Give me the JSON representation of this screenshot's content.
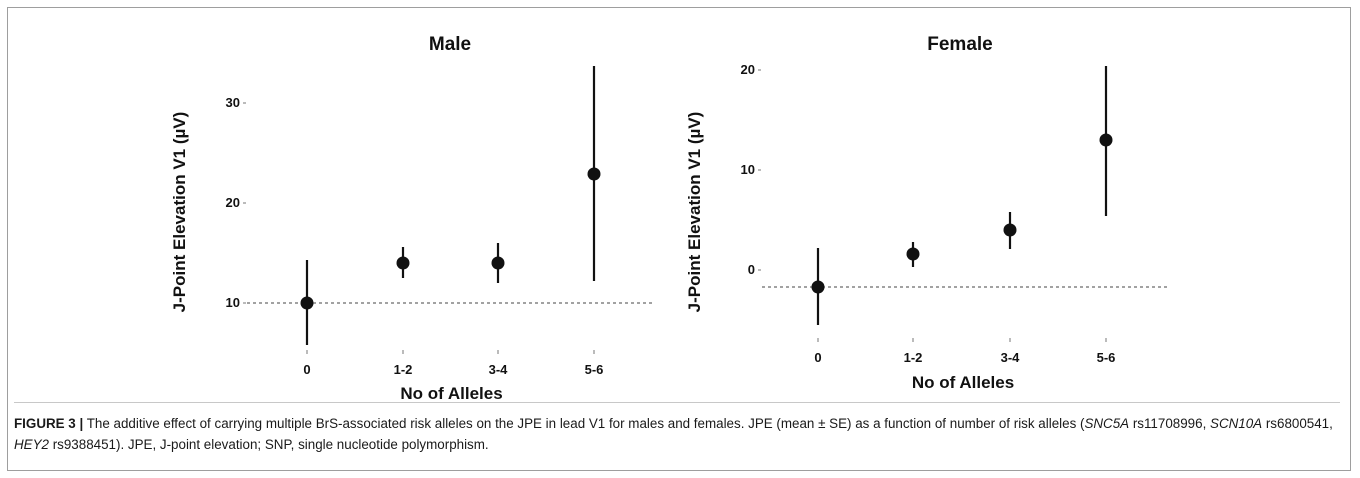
{
  "chart_data": [
    {
      "type": "scatter",
      "title": "Male",
      "xlabel": "No of Alleles",
      "ylabel": "J-Point Elevation V1 (µV)",
      "categories": [
        "0",
        "1-2",
        "3-4",
        "5-6"
      ],
      "mean": [
        10.0,
        14.0,
        14.0,
        22.9
      ],
      "lower": [
        5.8,
        12.5,
        12.0,
        12.2
      ],
      "upper": [
        14.3,
        15.6,
        16.0,
        33.7
      ],
      "yticks": [
        10,
        20,
        30
      ],
      "ylim": [
        4.3,
        33.7
      ],
      "reference_line": 10.0,
      "grid": false
    },
    {
      "type": "scatter",
      "title": "Female",
      "xlabel": "No of Alleles",
      "ylabel": "J-Point Elevation V1 (µV)",
      "categories": [
        "0",
        "1-2",
        "3-4",
        "5-6"
      ],
      "mean": [
        -1.7,
        1.6,
        4.0,
        13.0
      ],
      "lower": [
        -5.5,
        0.3,
        2.1,
        5.4
      ],
      "upper": [
        2.2,
        2.8,
        5.8,
        20.4
      ],
      "yticks": [
        0,
        10,
        20
      ],
      "ylim": [
        -7.6,
        20.4
      ],
      "reference_line": -1.7,
      "grid": false
    }
  ],
  "caption": {
    "figure_label": "FIGURE 3 |",
    "text1": " The additive effect of carrying multiple BrS-associated risk alleles on the JPE in lead V1 for males and females. JPE (mean ± SE) as a function of number of risk alleles (",
    "gene1": "SNC5A",
    "text2": " rs11708996, ",
    "gene2": "SCN10A",
    "text3": " rs6800541, ",
    "gene3": "HEY2",
    "text4": " rs9388451). JPE, J-point elevation; SNP, single nucleotide polymorphism."
  }
}
